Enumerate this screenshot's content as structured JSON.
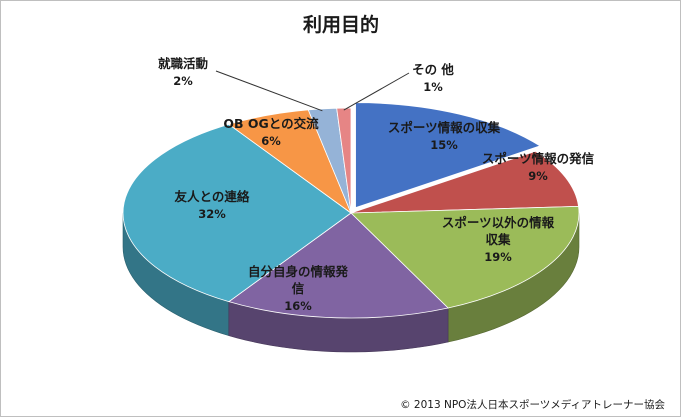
{
  "chart_data": {
    "type": "pie",
    "title": "利用目的",
    "categories": [
      "スポーツ情報の収集",
      "スポーツ情報の発信",
      "スポーツ以外の情報収集",
      "自分自身の情報発信",
      "友人との連絡",
      "OB OGとの交流",
      "就職活動",
      "その 他"
    ],
    "values": [
      15,
      9,
      19,
      16,
      32,
      6,
      2,
      1
    ],
    "value_labels": [
      "15%",
      "9%",
      "19%",
      "16%",
      "32%",
      "6%",
      "2%",
      "1%"
    ],
    "colors": [
      "#4472c4",
      "#c0504d",
      "#9bbb59",
      "#8064a2",
      "#4bacc6",
      "#f79646",
      "#95b3d7",
      "#e68585"
    ],
    "legend": "none",
    "style": "3d-exploded",
    "copyright": "© 2013 NPO法人日本スポーツメディアトレーナー協会"
  }
}
